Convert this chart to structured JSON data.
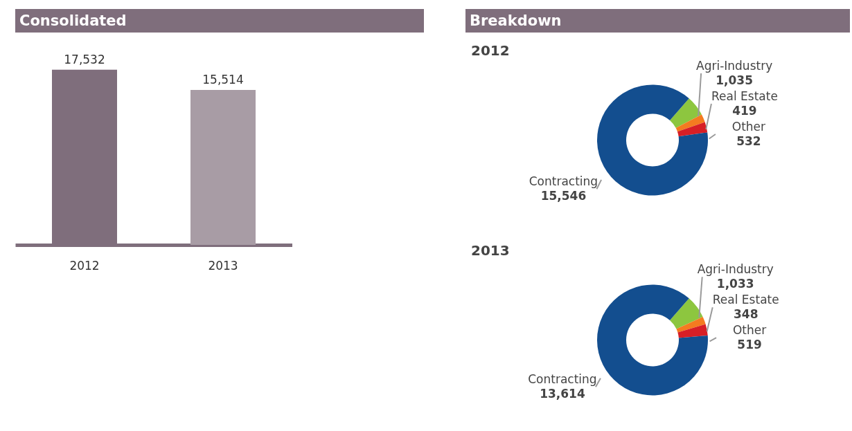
{
  "chart_data": [
    {
      "type": "bar",
      "title": "Consolidated",
      "categories": [
        "2012",
        "2013"
      ],
      "values": [
        17532,
        15514
      ],
      "colors": [
        "#7f6e7c",
        "#a89ca5"
      ],
      "value_labels": [
        "17,532",
        "15,514"
      ]
    },
    {
      "type": "donut",
      "title": "Breakdown",
      "subtitle": "2012",
      "categories": [
        "Agri-Industry",
        "Real Estate",
        "Other",
        "Contracting"
      ],
      "values": [
        1035,
        419,
        532,
        15546
      ],
      "colors": [
        "#8dc63f",
        "#f47b20",
        "#d71f26",
        "#134e8f"
      ],
      "value_labels": [
        "1,035",
        "419",
        "532",
        "15,546"
      ]
    },
    {
      "type": "donut",
      "subtitle": "2013",
      "categories": [
        "Agri-Industry",
        "Real Estate",
        "Other",
        "Contracting"
      ],
      "values": [
        1033,
        348,
        519,
        13614
      ],
      "colors": [
        "#8dc63f",
        "#f47b20",
        "#d71f26",
        "#134e8f"
      ],
      "value_labels": [
        "1,033",
        "348",
        "519",
        "13,614"
      ]
    }
  ]
}
